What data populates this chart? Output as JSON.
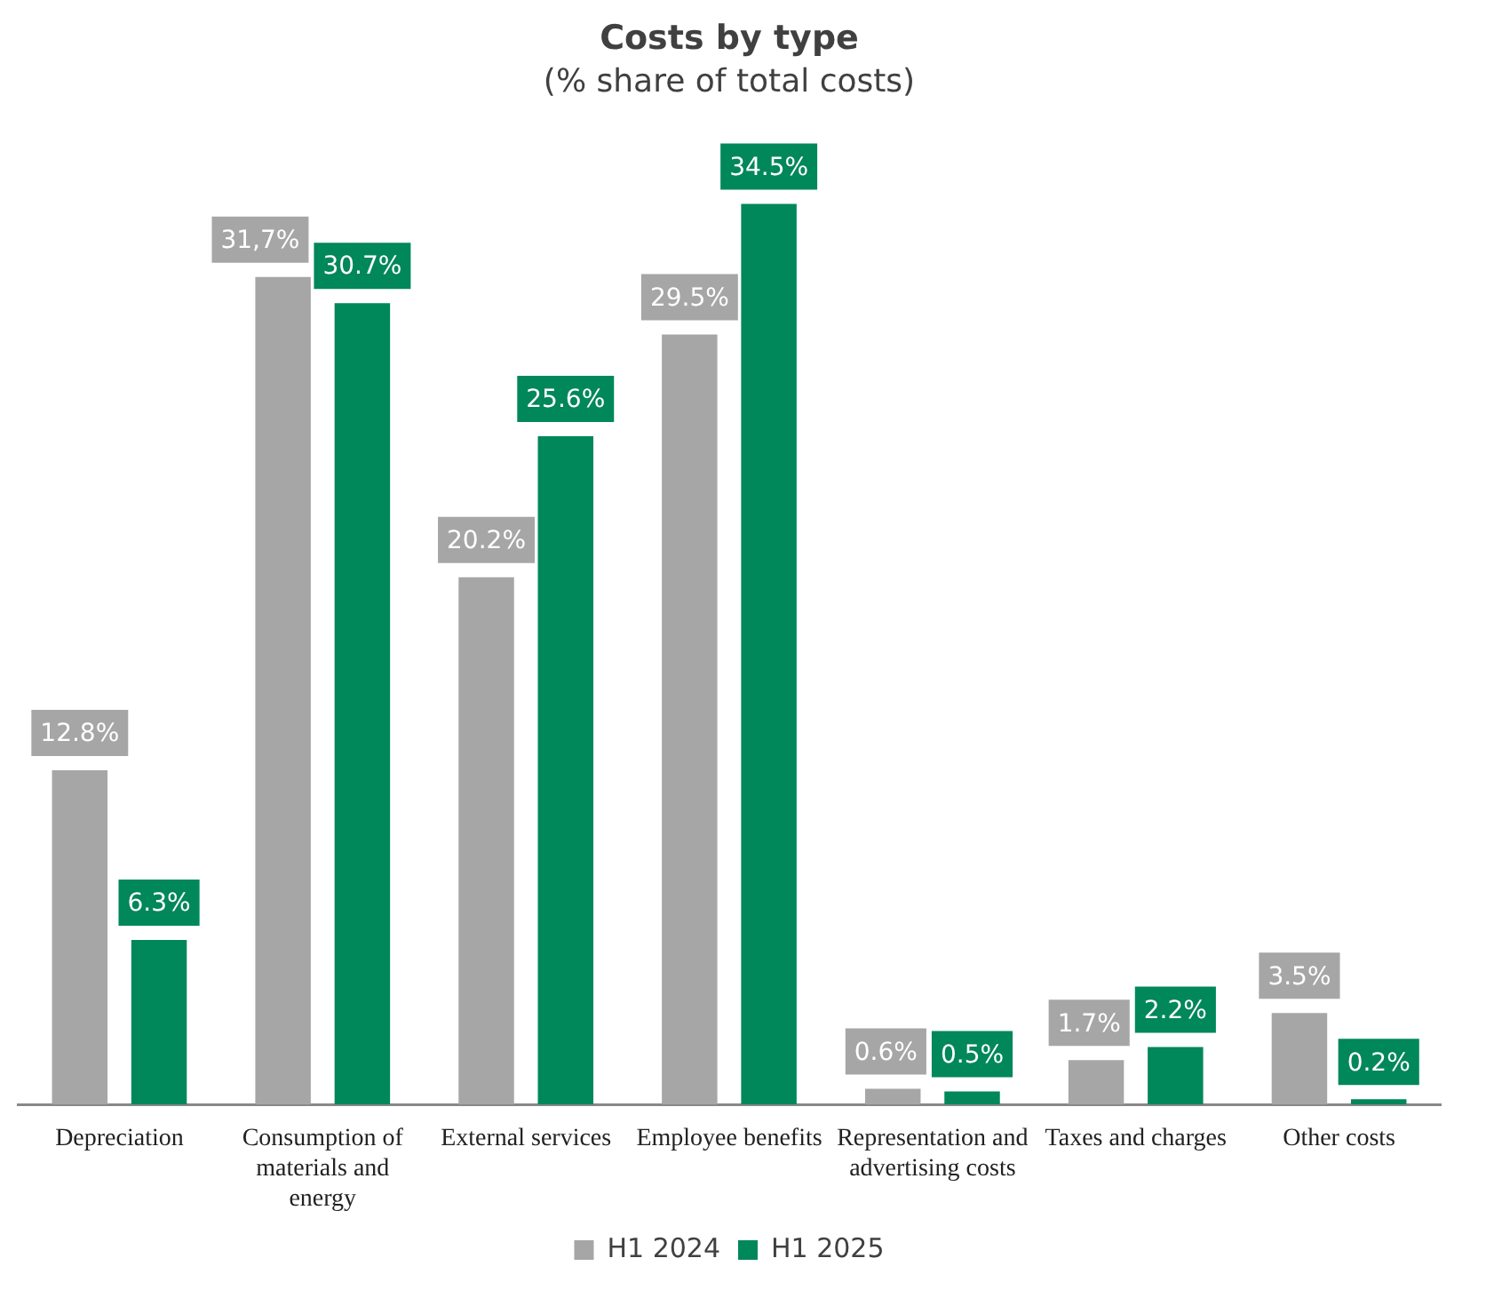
{
  "chart_data": {
    "type": "bar",
    "title": "Costs by type",
    "subtitle": "(% share of total costs)",
    "categories": [
      "Depreciation",
      "Consumption of materials and energy",
      "External services",
      "Employee benefits",
      "Representation and advertising costs",
      "Taxes and charges",
      "Other costs"
    ],
    "series": [
      {
        "name": "H1 2024",
        "color": "#a6a6a6",
        "values": [
          12.8,
          31.7,
          20.2,
          29.5,
          0.6,
          1.7,
          3.5
        ],
        "value_labels": [
          "12.8%",
          "31,7%",
          "20.2%",
          "29.5%",
          "0.6%",
          "1.7%",
          "3.5%"
        ]
      },
      {
        "name": "H1 2025",
        "color": "#00875a",
        "values": [
          6.3,
          30.7,
          25.6,
          34.5,
          0.5,
          2.2,
          0.2
        ],
        "value_labels": [
          "6.3%",
          "30.7%",
          "25.6%",
          "34.5%",
          "0.5%",
          "2.2%",
          "0.2%"
        ]
      }
    ],
    "legend": "bottom"
  }
}
